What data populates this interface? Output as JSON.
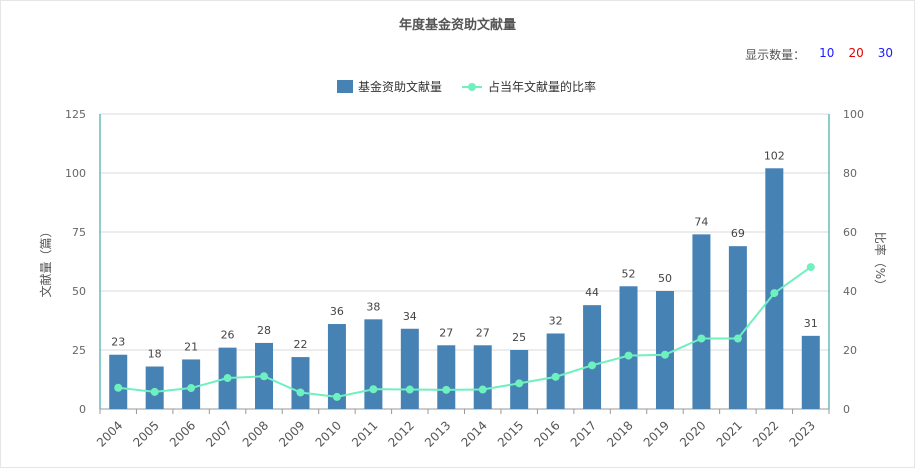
{
  "title": "年度基金资助文献量",
  "count_selector": {
    "label": "显示数量：",
    "options": [
      {
        "label": "10",
        "color": "#1a1aff"
      },
      {
        "label": "20",
        "color": "#e60000"
      },
      {
        "label": "30",
        "color": "#1a1aff"
      }
    ]
  },
  "colors": {
    "bar": "#4682b4",
    "line": "#6ff0bf",
    "left_axis": "#1a9a9a",
    "right_axis": "#1a9a9a"
  },
  "chart_data": {
    "type": "bar",
    "categories": [
      "2004",
      "2005",
      "2006",
      "2007",
      "2008",
      "2009",
      "2010",
      "2011",
      "2012",
      "2013",
      "2014",
      "2015",
      "2016",
      "2017",
      "2018",
      "2019",
      "2020",
      "2021",
      "2022",
      "2023"
    ],
    "series": [
      {
        "name": "基金资助文献量",
        "type": "bar",
        "axis": "left",
        "values": [
          23,
          18,
          21,
          26,
          28,
          22,
          36,
          38,
          34,
          27,
          27,
          25,
          32,
          44,
          52,
          50,
          74,
          69,
          102,
          31
        ]
      },
      {
        "name": "占当年文献量的比率",
        "type": "line",
        "axis": "right",
        "values": [
          7.2,
          5.8,
          7.1,
          10.5,
          11.1,
          5.6,
          4.1,
          6.7,
          6.6,
          6.5,
          6.6,
          8.7,
          10.9,
          14.8,
          18.1,
          18.4,
          23.9,
          23.9,
          39.3,
          48.1
        ]
      }
    ],
    "ylabel": "文献量（篇）",
    "ylim": [
      0,
      125
    ],
    "yticks": [
      0,
      25,
      50,
      75,
      100,
      125
    ],
    "y2label": "比率（%）",
    "y2lim": [
      0,
      100
    ],
    "y2ticks": [
      0,
      20,
      40,
      60,
      80,
      100
    ],
    "grid": true,
    "legend": "top-center",
    "data_labels": true
  }
}
